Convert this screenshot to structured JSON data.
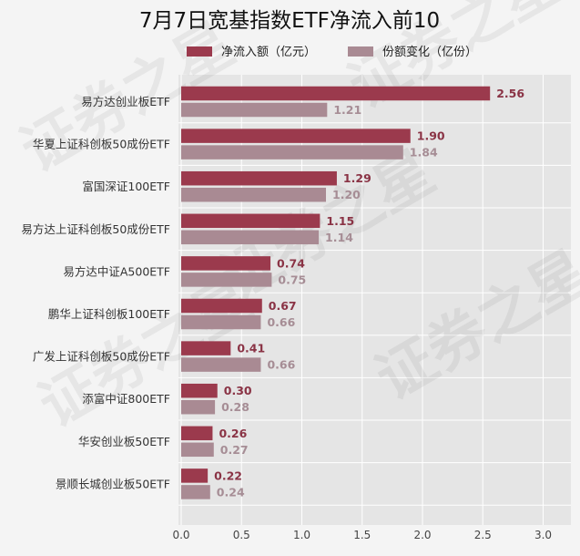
{
  "chart_data": {
    "type": "bar",
    "orientation": "horizontal",
    "title": "7月7日宽基指数ETF净流入前10",
    "categories": [
      "易方达创业板ETF",
      "华夏上证科创板50成份ETF",
      "富国深证100ETF",
      "易方达上证科创板50成份ETF",
      "易方达中证A500ETF",
      "鹏华上证科创板100ETF",
      "广发上证科创板50成份ETF",
      "添富中证800ETF",
      "华安创业板50ETF",
      "景顺长城创业板50ETF"
    ],
    "series": [
      {
        "name": "净流入额（亿元）",
        "color": "#9b3a4d",
        "label_color": "#8a3345",
        "values": [
          2.56,
          1.9,
          1.29,
          1.15,
          0.74,
          0.67,
          0.41,
          0.3,
          0.26,
          0.22
        ],
        "labels": [
          "2.56",
          "1.90",
          "1.29",
          "1.15",
          "0.74",
          "0.67",
          "0.41",
          "0.30",
          "0.26",
          "0.22"
        ]
      },
      {
        "name": "份额变化（亿份）",
        "color": "#a98a93",
        "label_color": "#a68d95",
        "values": [
          1.21,
          1.84,
          1.2,
          1.14,
          0.75,
          0.66,
          0.66,
          0.28,
          0.27,
          0.24
        ],
        "labels": [
          "1.21",
          "1.84",
          "1.20",
          "1.14",
          "0.75",
          "0.66",
          "0.66",
          "0.28",
          "0.27",
          "0.24"
        ]
      }
    ],
    "xlim": [
      0,
      3.2
    ],
    "xticks": [
      "0.0",
      "0.5",
      "1.0",
      "1.5",
      "2.0",
      "2.5",
      "3.0"
    ],
    "grid": true,
    "legend_position": "top",
    "watermark_text": "证券之星"
  }
}
